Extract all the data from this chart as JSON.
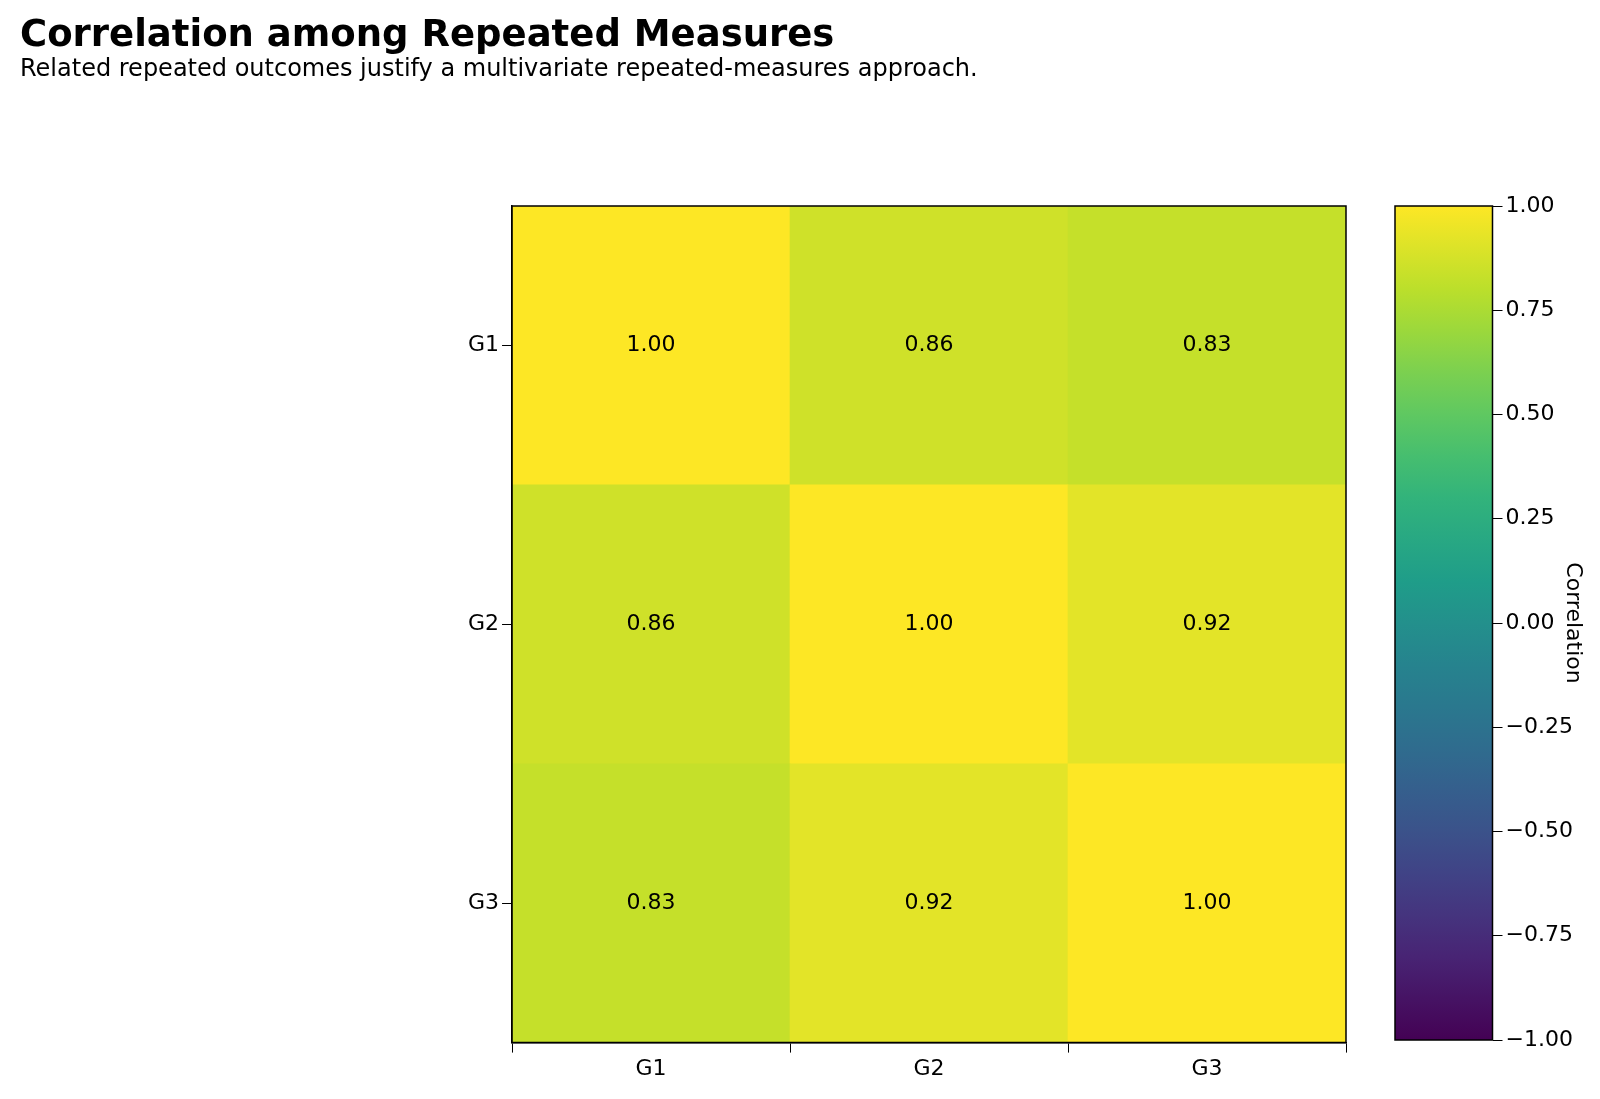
{
  "chart_data": {
    "type": "heatmap",
    "title": "Correlation among Repeated Measures",
    "subtitle": "Related repeated outcomes justify a multivariate repeated-measures approach.",
    "categories": [
      "G1",
      "G2",
      "G3"
    ],
    "y_categories": [
      "G1",
      "G2",
      "G3"
    ],
    "cells": [
      [
        1.0,
        0.86,
        0.83
      ],
      [
        0.86,
        1.0,
        0.92
      ],
      [
        0.83,
        0.92,
        1.0
      ]
    ],
    "cell_labels": [
      [
        "1.00",
        "0.86",
        "0.83"
      ],
      [
        "0.86",
        "1.00",
        "0.92"
      ],
      [
        "0.83",
        "0.92",
        "1.00"
      ]
    ],
    "clim": [
      -1,
      1
    ],
    "clabel": "Correlation",
    "cticks": [
      {
        "value": -1,
        "label": "−1.00"
      },
      {
        "value": -0.75,
        "label": "−0.75"
      },
      {
        "value": -0.5,
        "label": "−0.50"
      },
      {
        "value": -0.25,
        "label": "−0.25"
      },
      {
        "value": 0,
        "label": "0.00"
      },
      {
        "value": 0.25,
        "label": "0.25"
      },
      {
        "value": 0.5,
        "label": "0.50"
      },
      {
        "value": 0.75,
        "label": "0.75"
      },
      {
        "value": 1,
        "label": "1.00"
      }
    ]
  }
}
